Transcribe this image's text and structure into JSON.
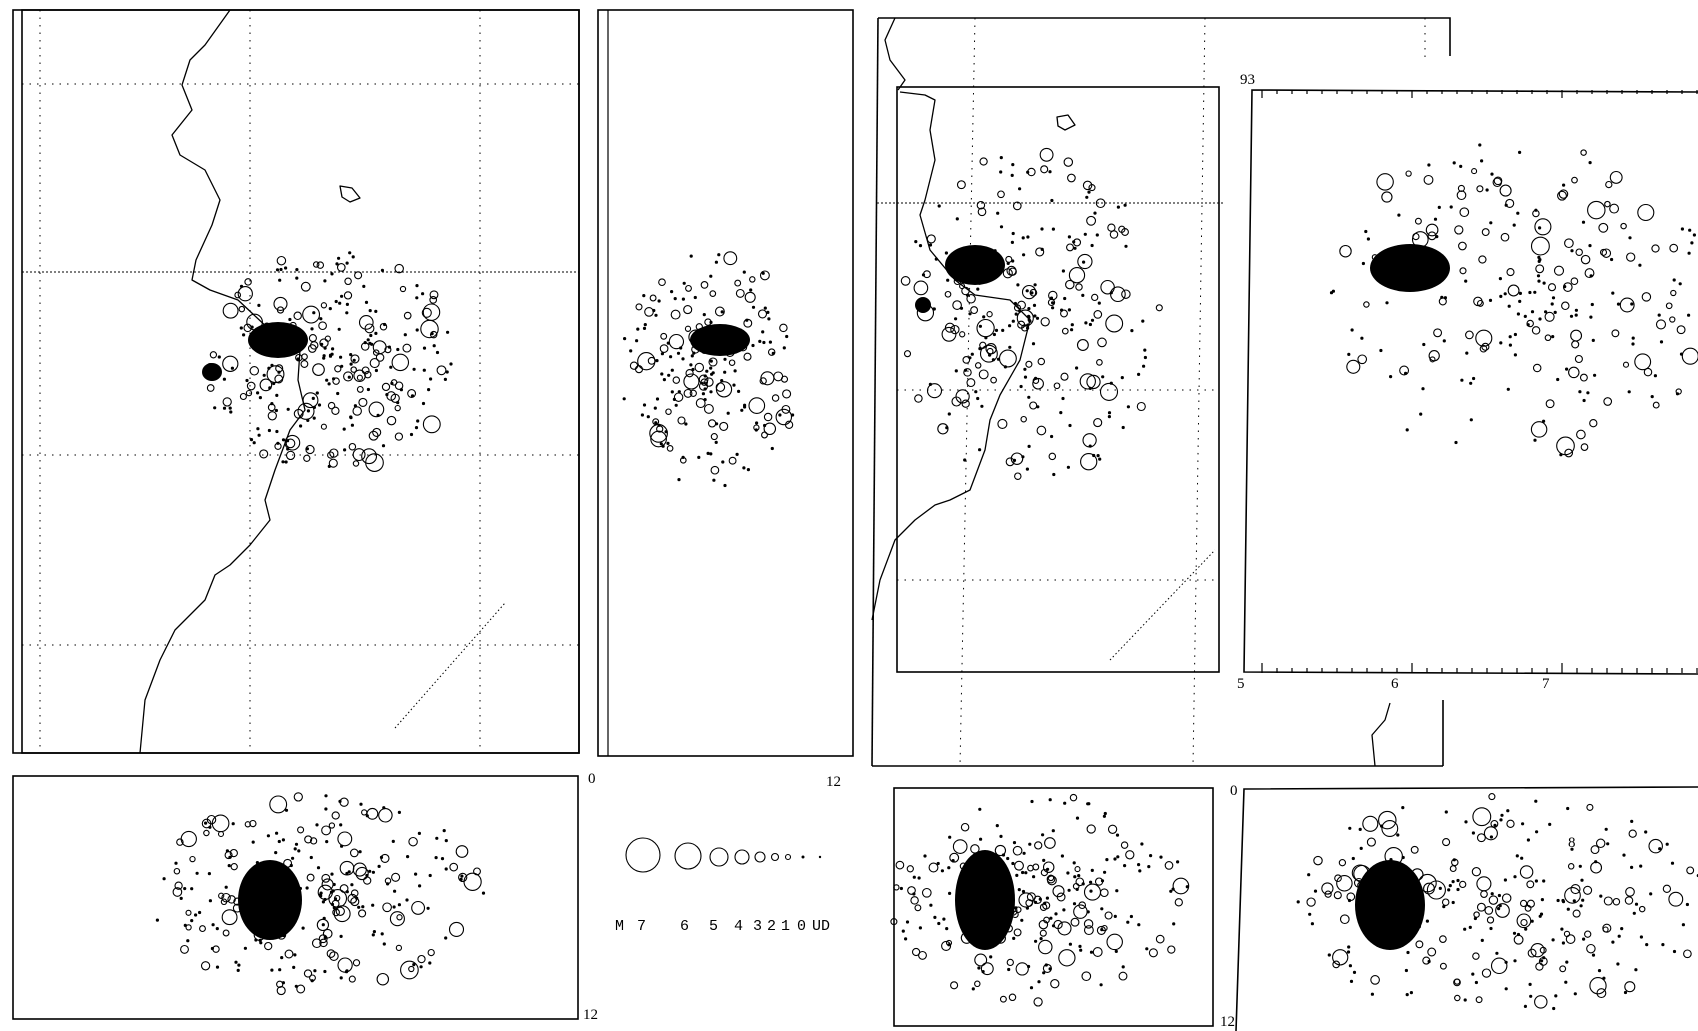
{
  "figure": {
    "label_93": "93",
    "left_depth_axis": {
      "min": "0",
      "max": "12"
    },
    "left_bottom_panel": {
      "max": "12"
    },
    "right_time_axis": {
      "t5": "5",
      "t6": "6",
      "t7": "7"
    },
    "right_bottom_depth": {
      "min": "0",
      "max": "12"
    },
    "lone_digit": "8"
  },
  "legend": {
    "prefix": "M",
    "labels": [
      "7",
      "6",
      "5",
      "4",
      "3",
      "2",
      "1",
      "0",
      "UD"
    ]
  }
}
